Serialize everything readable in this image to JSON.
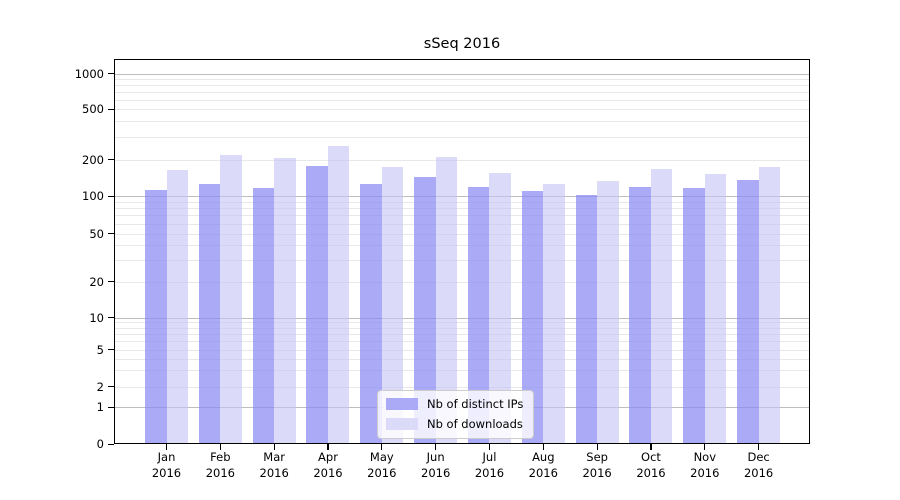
{
  "title": "sSeq 2016",
  "colors": {
    "series_ips": "#8989f4",
    "series_ips_alpha": 0.72,
    "series_ips_displayed": "#aaaaf7",
    "series_downloads": "#c3c3f5",
    "series_downloads_alpha": 0.6,
    "series_downloads_displayed": "#dbdbf9",
    "grid_major": "#bdbdbd",
    "grid_minor": "#e8e8e8",
    "axis": "#000000",
    "background": "#ffffff"
  },
  "chart_data": {
    "type": "bar",
    "title": "sSeq 2016",
    "categories": [
      "Jan 2016",
      "Feb 2016",
      "Mar 2016",
      "Apr 2016",
      "May 2016",
      "Jun 2016",
      "Jul 2016",
      "Aug 2016",
      "Sep 2016",
      "Oct 2016",
      "Nov 2016",
      "Dec 2016"
    ],
    "series": [
      {
        "name": "Nb of distinct IPs",
        "values": [
          112,
          126,
          117,
          177,
          126,
          143,
          118,
          109,
          102,
          119,
          116,
          135
        ]
      },
      {
        "name": "Nb of downloads",
        "values": [
          165,
          218,
          205,
          255,
          172,
          210,
          156,
          125,
          132,
          167,
          151,
          172
        ]
      }
    ],
    "xlabel": "",
    "ylabel": "",
    "yscale": "symlog",
    "yticks": [
      0,
      1,
      2,
      5,
      10,
      20,
      50,
      100,
      200,
      500,
      1000
    ],
    "ylim": [
      0,
      1300
    ],
    "grid": true,
    "legend_position": "lower center"
  }
}
